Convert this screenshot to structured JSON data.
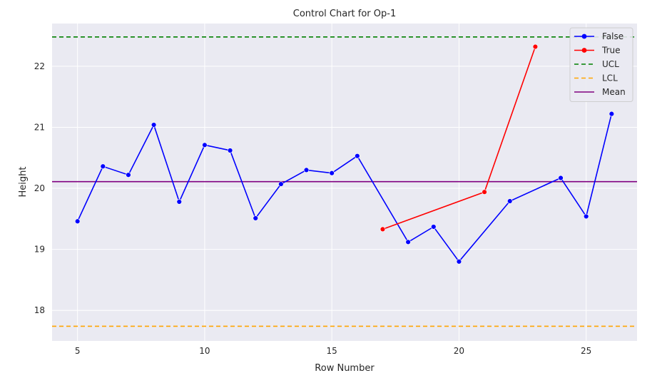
{
  "chart_data": {
    "type": "line",
    "title": "Control Chart for Op-1",
    "xlabel": "Row Number",
    "ylabel": "Height",
    "xlim": [
      4,
      27
    ],
    "ylim": [
      17.5,
      22.7
    ],
    "x_ticks": [
      5,
      10,
      15,
      20,
      25
    ],
    "y_ticks": [
      18,
      19,
      20,
      21,
      22
    ],
    "grid": true,
    "legend_position": "top-right",
    "series": [
      {
        "name": "False",
        "color": "#0000ff",
        "marker": "circle",
        "x": [
          5,
          6,
          7,
          8,
          9,
          10,
          11,
          12,
          13,
          14,
          15,
          16,
          18,
          19,
          20,
          22,
          24,
          25,
          26
        ],
        "y": [
          19.46,
          20.36,
          20.22,
          21.04,
          19.78,
          20.71,
          20.62,
          19.51,
          20.07,
          20.3,
          20.25,
          20.53,
          19.12,
          19.37,
          18.8,
          19.79,
          20.17,
          19.54,
          21.22
        ]
      },
      {
        "name": "True",
        "color": "#ff0000",
        "marker": "circle",
        "x": [
          17,
          21,
          23
        ],
        "y": [
          19.33,
          19.94,
          22.32
        ]
      }
    ],
    "reference_lines": [
      {
        "name": "UCL",
        "value": 22.48,
        "color": "#008000",
        "style": "dashed"
      },
      {
        "name": "LCL",
        "value": 17.74,
        "color": "#ffa500",
        "style": "dashed"
      },
      {
        "name": "Mean",
        "value": 20.11,
        "color": "#800080",
        "style": "solid"
      }
    ]
  }
}
